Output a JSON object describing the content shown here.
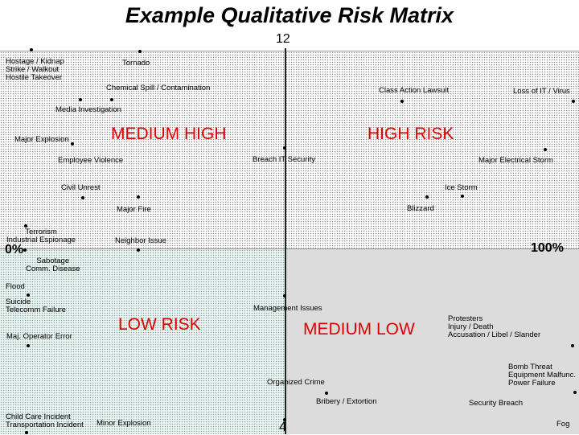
{
  "title": "Example Qualitative Risk Matrix",
  "axis": {
    "top": "12",
    "bottom": "4",
    "left": "0%",
    "right": "100%"
  },
  "zones": {
    "medium_high": "MEDIUM HIGH",
    "high_risk": "HIGH RISK",
    "low_risk": "LOW RISK",
    "medium_low": "MEDIUM LOW"
  },
  "risks": [
    "Hostage / Kidnap\nStrike / Walkout\nHostile Takeover",
    "Tornado",
    "Chemical Spill / Contamination",
    "Class Action Lawsuit",
    "Loss of IT / Virus",
    "Media Investigation",
    "Major Explosion",
    "Breach IT Security",
    "Major Electrical Storm",
    "Employee Violence",
    "Civil Unrest",
    "Ice Storm",
    "Major Fire",
    "Blizzard",
    "Terrorism\nIndustrial Espionage",
    "Neighbor Issue",
    "Sabotage\nComm. Disease",
    "Flood",
    "Suicide\nTelecomm Failure",
    "Management Issues",
    "Protesters\nInjury / Death\nAccusation / Libel / Slander",
    "Maj. Operator Error",
    "Bomb Threat\nEquipment Malfunc.\nPower Failure",
    "Organized Crime",
    "Bribery / Extortion",
    "Security Breach",
    "Child Care Incident\nTransportation Incident",
    "Minor Explosion",
    "Fog"
  ]
}
